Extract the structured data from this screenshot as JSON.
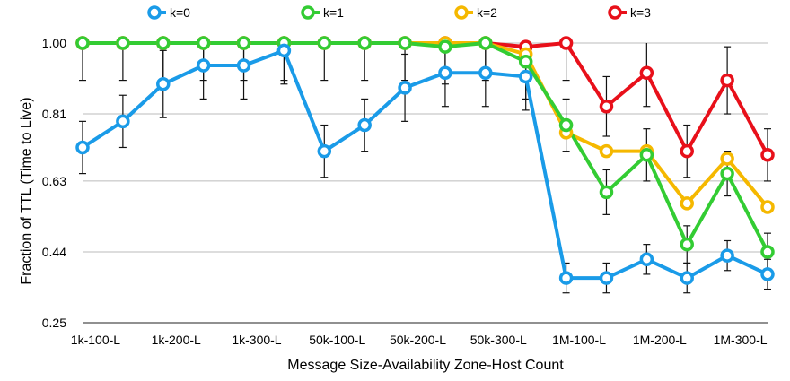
{
  "chart_data": {
    "type": "line",
    "xlabel": "Message Size-Availability Zone-Host Count",
    "ylabel": "Fraction of TTL (Time to Live)",
    "ylim": [
      0.25,
      1.0
    ],
    "yticks": [
      "1.00",
      "0.81",
      "0.63",
      "0.44",
      "0.25"
    ],
    "ytick_values": [
      1.0,
      0.81,
      0.63,
      0.44,
      0.25
    ],
    "xtick_labels": [
      "1k-100-L",
      "1k-200-L",
      "1k-300-L",
      "50k-100-L",
      "50k-200-L",
      "50k-300-L",
      "1M-100-L",
      "1M-200-L",
      "1M-300-L"
    ],
    "grid": "horizontal",
    "legend_position": "top",
    "points_per_series": 18,
    "series": [
      {
        "name": "k=0",
        "color": "#1a9be8",
        "values": [
          0.72,
          0.79,
          0.89,
          0.94,
          0.94,
          0.98,
          0.71,
          0.78,
          0.88,
          0.92,
          0.92,
          0.91,
          0.37,
          0.37,
          0.42,
          0.37,
          0.43,
          0.38
        ],
        "errors": [
          0.07,
          0.07,
          0.09,
          0.09,
          0.09,
          0.09,
          0.07,
          0.07,
          0.09,
          0.09,
          0.09,
          0.09,
          0.04,
          0.04,
          0.04,
          0.04,
          0.04,
          0.04
        ]
      },
      {
        "name": "k=1",
        "color": "#33cc33",
        "values": [
          1.0,
          1.0,
          1.0,
          1.0,
          1.0,
          1.0,
          1.0,
          1.0,
          1.0,
          0.99,
          1.0,
          0.95,
          0.78,
          0.6,
          0.7,
          0.46,
          0.65,
          0.44
        ],
        "errors": [
          0.1,
          0.1,
          0.1,
          0.1,
          0.1,
          0.1,
          0.1,
          0.1,
          0.1,
          0.1,
          0.1,
          0.1,
          0.07,
          0.06,
          0.07,
          0.05,
          0.06,
          0.05
        ]
      },
      {
        "name": "k=2",
        "color": "#f5b800",
        "values": [
          1.0,
          1.0,
          1.0,
          1.0,
          1.0,
          1.0,
          1.0,
          1.0,
          1.0,
          1.0,
          1.0,
          0.97,
          0.76,
          0.71,
          0.71,
          0.57,
          0.69,
          0.56
        ],
        "errors": [
          0,
          0,
          0,
          0,
          0,
          0,
          0,
          0,
          0,
          0,
          0,
          0,
          0,
          0,
          0,
          0,
          0,
          0
        ]
      },
      {
        "name": "k=3",
        "color": "#e8101a",
        "values": [
          1.0,
          1.0,
          1.0,
          1.0,
          1.0,
          1.0,
          1.0,
          1.0,
          1.0,
          1.0,
          1.0,
          0.99,
          1.0,
          0.83,
          0.92,
          0.71,
          0.9,
          0.7
        ],
        "errors": [
          0,
          0,
          0,
          0,
          0,
          0,
          0,
          0,
          0,
          0,
          0,
          0,
          0.1,
          0.08,
          0.09,
          0.07,
          0.09,
          0.07
        ]
      }
    ]
  }
}
